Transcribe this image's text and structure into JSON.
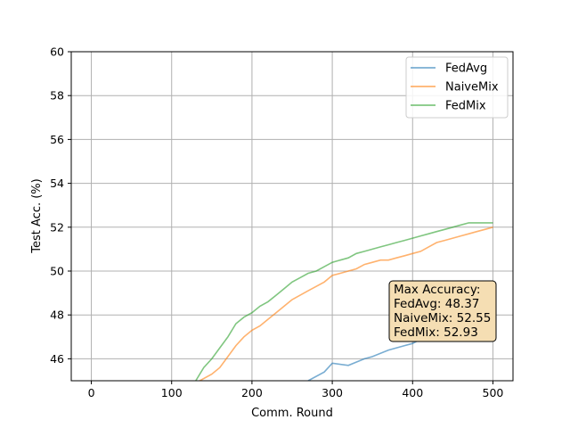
{
  "chart_data": {
    "type": "line",
    "xlabel": "Comm. Round",
    "ylabel": "Test Acc. (%)",
    "xlim": [
      -25,
      525
    ],
    "ylim": [
      45,
      60
    ],
    "xticks": [
      0,
      100,
      200,
      300,
      400,
      500
    ],
    "yticks": [
      46,
      48,
      50,
      52,
      54,
      56,
      58,
      60
    ],
    "grid": true,
    "legend_position": "top-right",
    "series": [
      {
        "name": "FedAvg",
        "color": "#1f77b4",
        "x": [
          270,
          290,
          300,
          320,
          340,
          350,
          370,
          390,
          400,
          410,
          420,
          430,
          440,
          450,
          460,
          470,
          480,
          490,
          500
        ],
        "y": [
          45.0,
          45.4,
          45.8,
          45.7,
          46.0,
          46.1,
          46.4,
          46.6,
          46.7,
          46.9,
          47.0,
          46.9,
          47.2,
          47.3,
          47.4,
          47.5,
          47.6,
          47.7,
          47.6
        ]
      },
      {
        "name": "NaiveMix",
        "color": "#ff7f0e",
        "x": [
          135,
          150,
          160,
          170,
          180,
          190,
          200,
          210,
          220,
          230,
          240,
          250,
          260,
          270,
          280,
          290,
          300,
          310,
          320,
          330,
          340,
          350,
          360,
          370,
          380,
          390,
          400,
          410,
          420,
          430,
          440,
          450,
          460,
          470,
          480,
          490,
          500
        ],
        "y": [
          45.0,
          45.3,
          45.6,
          46.1,
          46.6,
          47.0,
          47.3,
          47.5,
          47.8,
          48.1,
          48.4,
          48.7,
          48.9,
          49.1,
          49.3,
          49.5,
          49.8,
          49.9,
          50.0,
          50.1,
          50.3,
          50.4,
          50.5,
          50.5,
          50.6,
          50.7,
          50.8,
          50.9,
          51.1,
          51.3,
          51.4,
          51.5,
          51.6,
          51.7,
          51.8,
          51.9,
          52.0
        ]
      },
      {
        "name": "FedMix",
        "color": "#2ca02c",
        "x": [
          130,
          140,
          150,
          160,
          170,
          180,
          190,
          200,
          210,
          220,
          230,
          240,
          250,
          260,
          270,
          280,
          290,
          300,
          310,
          320,
          330,
          340,
          350,
          360,
          370,
          380,
          390,
          400,
          410,
          420,
          430,
          440,
          450,
          460,
          470,
          480,
          490,
          500
        ],
        "y": [
          45.0,
          45.6,
          46.0,
          46.5,
          47.0,
          47.6,
          47.9,
          48.1,
          48.4,
          48.6,
          48.9,
          49.2,
          49.5,
          49.7,
          49.9,
          50.0,
          50.2,
          50.4,
          50.5,
          50.6,
          50.8,
          50.9,
          51.0,
          51.1,
          51.2,
          51.3,
          51.4,
          51.5,
          51.6,
          51.7,
          51.8,
          51.9,
          52.0,
          52.1,
          52.2,
          52.2,
          52.2,
          52.2
        ]
      }
    ],
    "annotation": {
      "lines": [
        "Max Accuracy:",
        "FedAvg: 48.37",
        "NaiveMix: 52.55",
        "FedMix: 52.93"
      ],
      "background": "#f5deb3"
    }
  }
}
